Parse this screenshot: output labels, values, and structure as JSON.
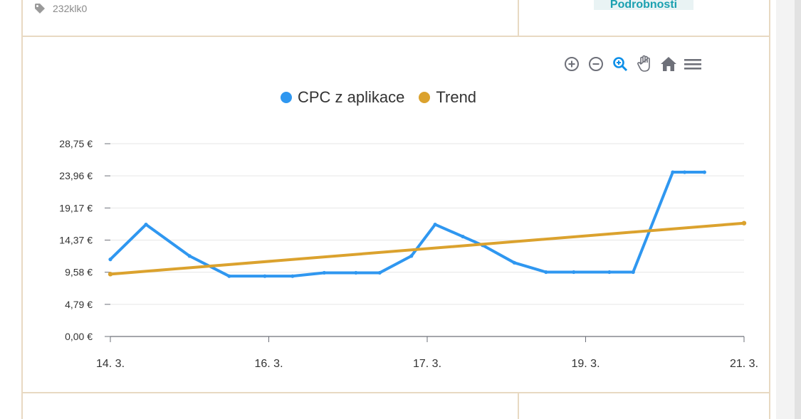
{
  "top": {
    "tag_text": "232klk0",
    "details_label": "Podrobnosti"
  },
  "toolbar": {
    "buttons": [
      {
        "name": "zoom-in",
        "icon": "plus-circle-icon"
      },
      {
        "name": "zoom-out",
        "icon": "minus-circle-icon"
      },
      {
        "name": "selection-zoom",
        "icon": "magnifier-icon"
      },
      {
        "name": "pan",
        "icon": "hand-icon"
      },
      {
        "name": "reset",
        "icon": "home-icon"
      },
      {
        "name": "menu",
        "icon": "hamburger-icon"
      }
    ]
  },
  "chart_data": {
    "type": "line",
    "y_ticks": [
      "0,00 €",
      "4,79 €",
      "9,58 €",
      "14,37 €",
      "19,17 €",
      "23,96 €",
      "28,75 €"
    ],
    "ylim": [
      0,
      28.75
    ],
    "x_ticks": [
      {
        "label": "14. 3.",
        "x": 0
      },
      {
        "label": "16. 3.",
        "x": 2
      },
      {
        "label": "17. 3.",
        "x": 4
      },
      {
        "label": "19. 3.",
        "x": 6
      },
      {
        "label": "21. 3.",
        "x": 8
      }
    ],
    "xlim": [
      0,
      8
    ],
    "series": [
      {
        "name": "CPC z aplikace",
        "color": "#2f97f0",
        "x": [
          0,
          0.45,
          1.0,
          1.5,
          1.95,
          2.3,
          2.7,
          3.1,
          3.4,
          3.8,
          4.1,
          4.45,
          4.7,
          5.1,
          5.5,
          5.85,
          6.3,
          6.6,
          7.1,
          7.25,
          7.5
        ],
        "values": [
          11.5,
          16.7,
          12.0,
          9.0,
          9.0,
          9.0,
          9.5,
          9.5,
          9.5,
          12.0,
          16.7,
          14.9,
          13.6,
          11.0,
          9.6,
          9.6,
          9.6,
          9.6,
          24.5,
          24.5,
          24.5
        ]
      },
      {
        "name": "Trend",
        "color": "#dba22e",
        "x": [
          0,
          8
        ],
        "values": [
          9.3,
          16.9
        ]
      }
    ]
  }
}
